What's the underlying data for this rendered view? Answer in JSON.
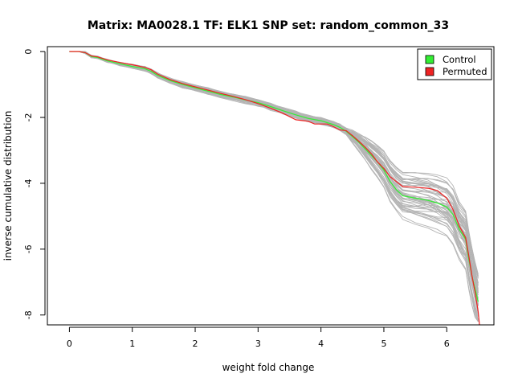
{
  "chart_data": {
    "type": "line",
    "title": "Matrix: MA0028.1 TF: ELK1 SNP set: random_common_33",
    "xlabel": "weight fold change",
    "ylabel": "inverse cumulative distribution",
    "xlim": [
      -0.35,
      6.75
    ],
    "ylim": [
      -8.3,
      0.15
    ],
    "xticks": [
      0,
      1,
      2,
      3,
      4,
      5,
      6
    ],
    "yticks": [
      0,
      -2,
      -4,
      -6,
      -8
    ],
    "grid": false,
    "legend_position": "top-right",
    "legend": [
      {
        "label": "Control",
        "color": "#33ee33"
      },
      {
        "label": "Permuted",
        "color": "#ee2222"
      }
    ],
    "series": [
      {
        "name": "Control",
        "color": "#33ee33",
        "x": [
          0,
          0.15,
          0.25,
          0.35,
          0.45,
          0.6,
          0.8,
          1.0,
          1.2,
          1.3,
          1.4,
          1.6,
          1.8,
          2.0,
          2.2,
          2.4,
          2.6,
          2.8,
          3.0,
          3.2,
          3.4,
          3.6,
          3.8,
          4.0,
          4.2,
          4.3,
          4.4,
          4.5,
          4.6,
          4.7,
          4.8,
          4.9,
          5.0,
          5.1,
          5.2,
          5.3,
          5.5,
          5.7,
          5.85,
          6.0,
          6.1,
          6.2,
          6.3,
          6.35,
          6.4,
          6.45,
          6.5
        ],
        "y": [
          0,
          0,
          -0.03,
          -0.15,
          -0.18,
          -0.28,
          -0.37,
          -0.45,
          -0.52,
          -0.6,
          -0.72,
          -0.88,
          -1.0,
          -1.1,
          -1.2,
          -1.3,
          -1.38,
          -1.47,
          -1.55,
          -1.67,
          -1.8,
          -1.92,
          -2.03,
          -2.1,
          -2.22,
          -2.3,
          -2.42,
          -2.58,
          -2.75,
          -2.95,
          -3.15,
          -3.35,
          -3.6,
          -3.95,
          -4.2,
          -4.38,
          -4.45,
          -4.52,
          -4.6,
          -4.72,
          -4.95,
          -5.4,
          -5.7,
          -6.3,
          -6.8,
          -7.2,
          -7.6
        ]
      },
      {
        "name": "Permuted",
        "color": "#ee2222",
        "x": [
          0,
          0.15,
          0.25,
          0.35,
          0.45,
          0.6,
          0.8,
          1.0,
          1.2,
          1.3,
          1.4,
          1.6,
          1.8,
          2.0,
          2.2,
          2.4,
          2.6,
          2.8,
          3.0,
          3.2,
          3.4,
          3.6,
          3.8,
          3.9,
          4.1,
          4.2,
          4.3,
          4.4,
          4.5,
          4.6,
          4.7,
          4.8,
          4.9,
          5.0,
          5.1,
          5.2,
          5.3,
          5.5,
          5.7,
          5.85,
          6.0,
          6.1,
          6.2,
          6.3,
          6.35,
          6.4,
          6.45,
          6.5,
          6.52
        ],
        "y": [
          0,
          0,
          -0.03,
          -0.13,
          -0.16,
          -0.25,
          -0.33,
          -0.4,
          -0.48,
          -0.55,
          -0.68,
          -0.85,
          -0.97,
          -1.07,
          -1.17,
          -1.27,
          -1.36,
          -1.46,
          -1.58,
          -1.72,
          -1.88,
          -2.07,
          -2.12,
          -2.2,
          -2.2,
          -2.28,
          -2.38,
          -2.4,
          -2.55,
          -2.72,
          -2.9,
          -3.1,
          -3.35,
          -3.55,
          -3.8,
          -3.95,
          -4.1,
          -4.12,
          -4.15,
          -4.22,
          -4.45,
          -4.8,
          -5.3,
          -5.65,
          -6.2,
          -6.8,
          -7.3,
          -7.9,
          -8.3
        ]
      }
    ],
    "background_series": {
      "color": "#b4b4b4",
      "description_count": 50
    }
  }
}
